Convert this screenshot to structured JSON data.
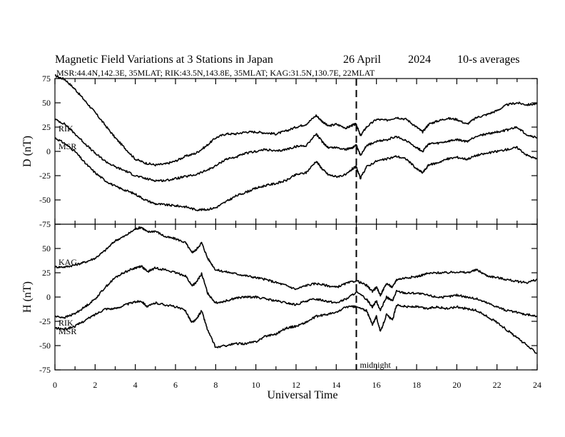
{
  "chart_data": [
    {
      "type": "line",
      "panel": "D",
      "title": "Magnetic Field Variations at 3 Stations in Japan",
      "date": "26  April",
      "year": "2024",
      "averaging": "10-s averages",
      "stations": "MSR:44.4N,142.3E, 35MLAT;  RIK:43.5N,143.8E, 35MLAT;  KAG:31.5N,130.7E, 22MLAT",
      "ylabel": "D (nT)",
      "ylim": [
        -75,
        75
      ],
      "yticks": [
        "75",
        "50",
        "25",
        "0",
        "-25",
        "-50",
        "-75"
      ],
      "xlim": [
        0,
        24
      ],
      "series": [
        {
          "name": "KAG",
          "x": [
            0,
            0.5,
            1,
            1.5,
            2,
            2.5,
            3,
            3.5,
            4,
            4.5,
            5,
            5.5,
            6,
            6.5,
            7,
            7.5,
            8,
            8.5,
            9,
            9.5,
            10,
            10.5,
            11,
            11.5,
            12,
            12.5,
            13,
            13.3,
            13.6,
            14,
            14.5,
            14.8,
            15,
            15.2,
            15.5,
            16,
            16.5,
            17,
            17.5,
            18,
            18.3,
            18.6,
            19,
            19.5,
            20,
            20.5,
            21,
            21.5,
            22,
            22.5,
            23,
            23.5,
            24
          ],
          "y": [
            78,
            74,
            64,
            52,
            40,
            27,
            14,
            3,
            -8,
            -12,
            -14,
            -13,
            -10,
            -5,
            -2,
            5,
            14,
            18,
            18,
            20,
            20,
            19,
            18,
            21,
            25,
            28,
            37,
            31,
            26,
            28,
            24,
            27,
            28,
            16,
            25,
            33,
            32,
            35,
            33,
            25,
            20,
            28,
            31,
            34,
            33,
            28,
            35,
            38,
            42,
            48,
            50,
            48,
            49
          ]
        },
        {
          "name": "RIK",
          "x": [
            0,
            0.5,
            1,
            1.5,
            2,
            2.5,
            3,
            3.5,
            4,
            4.5,
            5,
            5.5,
            6,
            6.5,
            7,
            7.5,
            8,
            8.5,
            9,
            9.5,
            10,
            10.5,
            11,
            11.5,
            12,
            12.5,
            13,
            13.3,
            13.6,
            14,
            14.5,
            14.8,
            15,
            15.2,
            15.5,
            16,
            16.5,
            17,
            17.5,
            18,
            18.3,
            18.6,
            19,
            19.5,
            20,
            20.5,
            21,
            21.5,
            22,
            22.5,
            23,
            23.5,
            24
          ],
          "y": [
            33,
            28,
            18,
            8,
            -2,
            -10,
            -16,
            -20,
            -25,
            -28,
            -30,
            -30,
            -28,
            -26,
            -24,
            -20,
            -15,
            -8,
            -6,
            -2,
            0,
            2,
            0,
            2,
            5,
            6,
            18,
            10,
            4,
            4,
            2,
            4,
            6,
            -4,
            6,
            10,
            12,
            15,
            11,
            4,
            0,
            8,
            8,
            10,
            12,
            10,
            16,
            18,
            20,
            22,
            25,
            17,
            14
          ]
        },
        {
          "name": "MSR",
          "x": [
            0,
            0.5,
            1,
            1.5,
            2,
            2.5,
            3,
            3.5,
            4,
            4.5,
            5,
            5.5,
            6,
            6.5,
            7,
            7.5,
            8,
            8.5,
            9,
            9.5,
            10,
            10.5,
            11,
            11.5,
            12,
            12.5,
            13,
            13.3,
            13.6,
            14,
            14.5,
            14.8,
            15,
            15.2,
            15.5,
            16,
            16.5,
            17,
            17.5,
            18,
            18.3,
            18.6,
            19,
            19.5,
            20,
            20.5,
            21,
            21.5,
            22,
            22.5,
            23,
            23.5,
            24
          ],
          "y": [
            14,
            8,
            0,
            -12,
            -22,
            -30,
            -36,
            -40,
            -44,
            -50,
            -54,
            -55,
            -56,
            -57,
            -60,
            -60,
            -58,
            -52,
            -46,
            -42,
            -38,
            -35,
            -33,
            -30,
            -24,
            -22,
            -10,
            -18,
            -24,
            -26,
            -24,
            -18,
            -16,
            -28,
            -16,
            -10,
            -8,
            -5,
            -8,
            -18,
            -22,
            -14,
            -12,
            -8,
            -6,
            -8,
            -4,
            -2,
            0,
            2,
            4,
            -4,
            -8
          ]
        }
      ],
      "series_labels": [
        "RIK",
        "MSR"
      ]
    },
    {
      "type": "line",
      "panel": "H",
      "ylabel": "H (nT)",
      "xlabel": "Universal Time",
      "ylim": [
        -75,
        75
      ],
      "yticks": [
        "",
        "50",
        "25",
        "0",
        "-25",
        "-50",
        "-75"
      ],
      "xlim": [
        0,
        24
      ],
      "xticks": [
        "0",
        "2",
        "4",
        "6",
        "8",
        "10",
        "12",
        "14",
        "16",
        "18",
        "20",
        "22",
        "24"
      ],
      "marker_x": 15,
      "marker_label": "midnight",
      "series": [
        {
          "name": "KAG",
          "x": [
            0,
            0.5,
            1,
            1.5,
            2,
            2.5,
            3,
            3.5,
            4,
            4.3,
            4.6,
            5,
            5.5,
            6,
            6.5,
            6.8,
            7,
            7.3,
            7.6,
            8,
            8.5,
            9,
            9.5,
            10,
            10.5,
            11,
            11.5,
            12,
            12.5,
            13,
            13.5,
            14,
            14.5,
            15,
            15.5,
            15.8,
            16,
            16.2,
            16.5,
            16.8,
            17,
            17.5,
            18,
            18.5,
            19,
            19.5,
            20,
            20.5,
            21,
            21.5,
            22,
            22.5,
            23,
            23.5,
            24
          ],
          "y": [
            31,
            31,
            33,
            36,
            40,
            48,
            58,
            63,
            70,
            72,
            67,
            68,
            62,
            60,
            56,
            46,
            48,
            56,
            40,
            28,
            26,
            24,
            22,
            20,
            18,
            15,
            12,
            8,
            12,
            14,
            12,
            10,
            14,
            17,
            12,
            6,
            10,
            2,
            14,
            10,
            18,
            20,
            21,
            24,
            25,
            25,
            26,
            25,
            28,
            22,
            20,
            18,
            16,
            15,
            18
          ]
        },
        {
          "name": "RIK",
          "x": [
            0,
            0.5,
            1,
            1.5,
            2,
            2.5,
            3,
            3.5,
            4,
            4.3,
            4.6,
            5,
            5.5,
            6,
            6.5,
            6.8,
            7,
            7.3,
            7.6,
            8,
            8.5,
            9,
            9.5,
            10,
            10.5,
            11,
            11.5,
            12,
            12.5,
            13,
            13.5,
            14,
            14.5,
            15,
            15.5,
            15.8,
            16,
            16.2,
            16.5,
            16.8,
            17,
            17.5,
            18,
            18.5,
            19,
            19.5,
            20,
            20.5,
            21,
            21.5,
            22,
            22.5,
            23,
            23.5,
            24
          ],
          "y": [
            -20,
            -21,
            -17,
            -10,
            -2,
            10,
            20,
            26,
            30,
            32,
            26,
            30,
            28,
            25,
            22,
            12,
            14,
            24,
            4,
            -6,
            -4,
            -1,
            0,
            0,
            -2,
            -4,
            -6,
            -8,
            -4,
            -2,
            -4,
            -6,
            -2,
            5,
            -2,
            -10,
            -4,
            -14,
            0,
            -4,
            6,
            4,
            4,
            2,
            0,
            0,
            2,
            0,
            -2,
            -6,
            -10,
            -14,
            -16,
            -18,
            -20
          ]
        },
        {
          "name": "MSR",
          "x": [
            0,
            0.5,
            1,
            1.5,
            2,
            2.5,
            3,
            3.5,
            4,
            4.3,
            4.6,
            5,
            5.5,
            6,
            6.5,
            6.8,
            7,
            7.3,
            7.6,
            8,
            8.5,
            9,
            9.5,
            10,
            10.5,
            11,
            11.5,
            12,
            12.5,
            13,
            13.5,
            14,
            14.5,
            15,
            15.5,
            15.8,
            16,
            16.2,
            16.5,
            16.8,
            17,
            17.5,
            18,
            18.5,
            19,
            19.5,
            20,
            20.5,
            21,
            21.5,
            22,
            22.5,
            23,
            23.5,
            24
          ],
          "y": [
            -32,
            -33,
            -30,
            -24,
            -18,
            -12,
            -12,
            -8,
            -5,
            -4,
            -10,
            -6,
            -8,
            -10,
            -14,
            -26,
            -24,
            -14,
            -34,
            -52,
            -50,
            -48,
            -48,
            -46,
            -40,
            -38,
            -32,
            -30,
            -26,
            -20,
            -18,
            -16,
            -10,
            -10,
            -14,
            -28,
            -20,
            -36,
            -18,
            -24,
            -8,
            -10,
            -10,
            -12,
            -10,
            -12,
            -10,
            -12,
            -14,
            -20,
            -26,
            -34,
            -42,
            -50,
            -58
          ]
        }
      ],
      "series_labels": [
        "KAG",
        "RIK",
        "MSR"
      ]
    }
  ]
}
